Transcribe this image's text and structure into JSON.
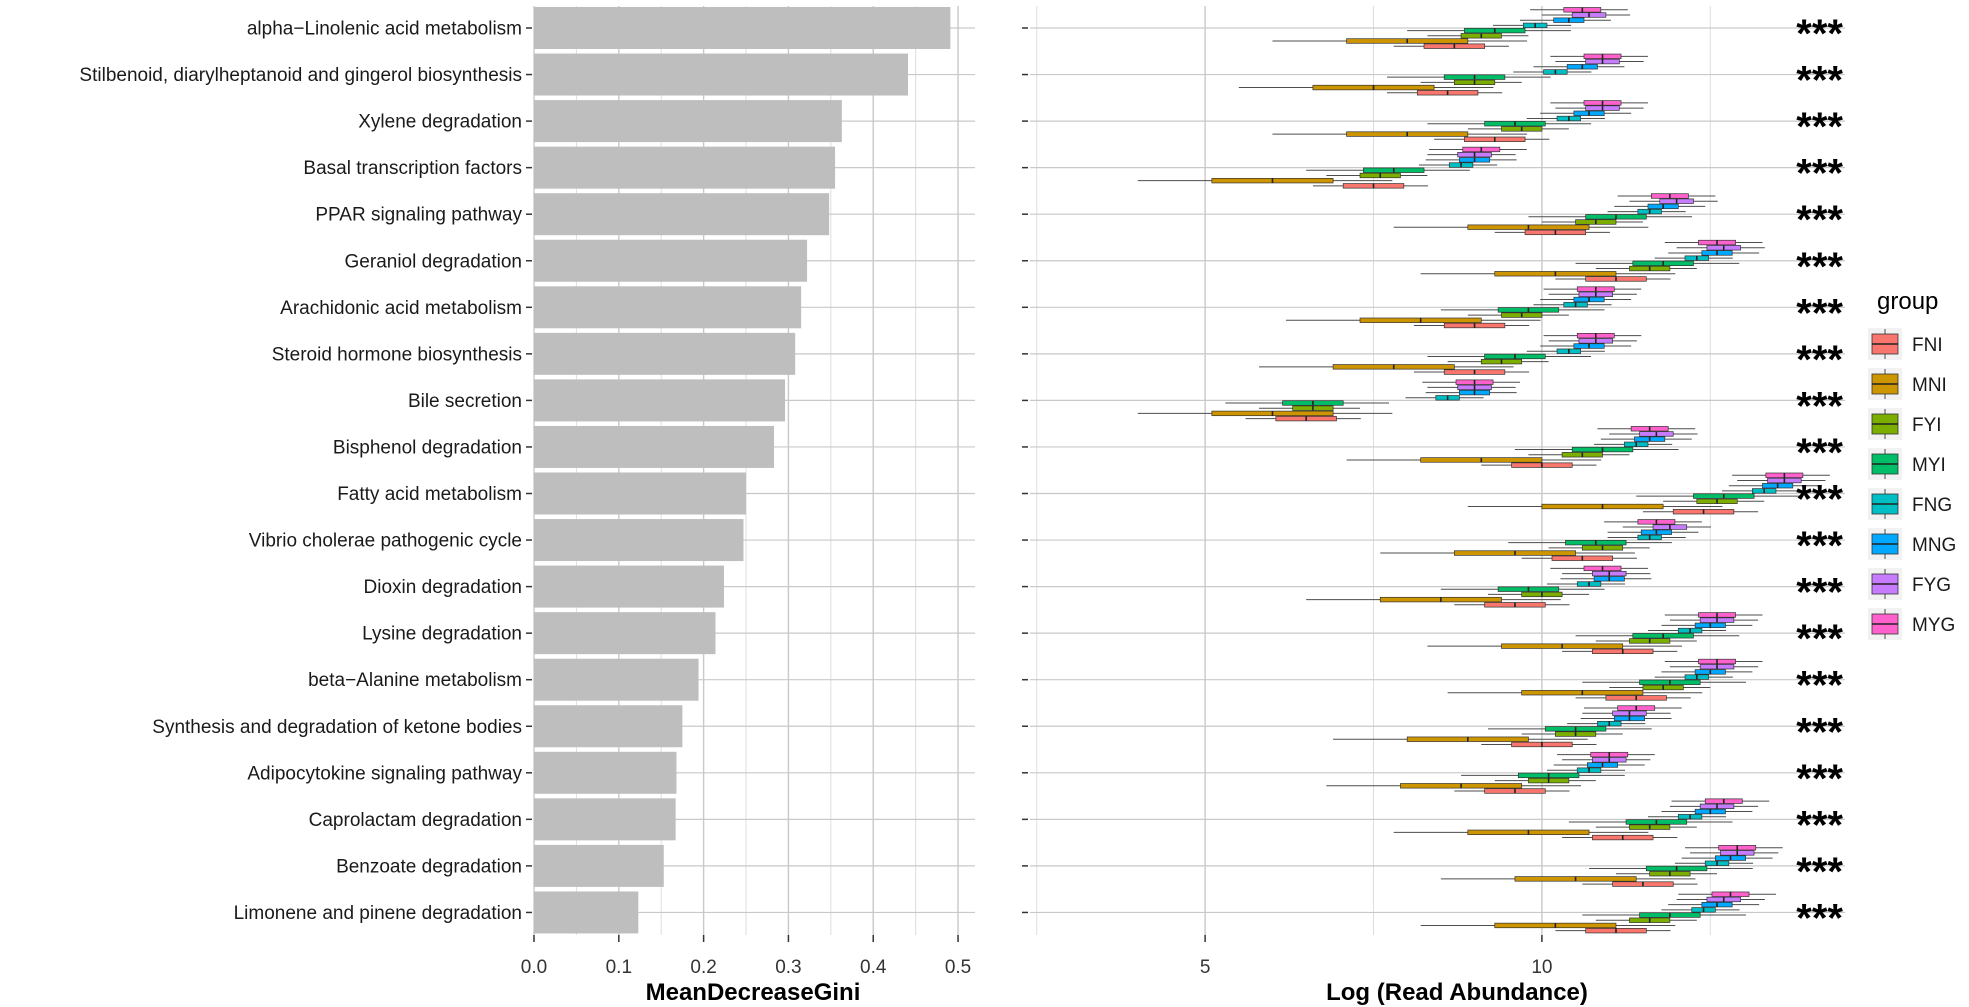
{
  "chart_data": [
    {
      "type": "bar",
      "orientation": "horizontal",
      "xlabel": "MeanDecreaseGini",
      "xlim": [
        0,
        0.52
      ],
      "xticks": [
        "0.0",
        "0.1",
        "0.2",
        "0.3",
        "0.4",
        "0.5"
      ],
      "grid": true,
      "bar_color": "#bebebe",
      "categories": [
        "alpha−Linolenic acid metabolism",
        "Stilbenoid, diarylheptanoid and gingerol biosynthesis",
        "Xylene degradation",
        "Basal transcription factors",
        "PPAR signaling pathway",
        "Geraniol degradation",
        "Arachidonic acid metabolism",
        "Steroid hormone biosynthesis",
        "Bile secretion",
        "Bisphenol degradation",
        "Fatty acid metabolism",
        "Vibrio cholerae pathogenic cycle",
        "Dioxin degradation",
        "Lysine degradation",
        "beta−Alanine metabolism",
        "Synthesis and degradation of ketone bodies",
        "Adipocytokine signaling pathway",
        "Caprolactam degradation",
        "Benzoate degradation",
        "Limonene and pinene degradation"
      ],
      "values": [
        0.491,
        0.441,
        0.363,
        0.355,
        0.348,
        0.322,
        0.315,
        0.308,
        0.296,
        0.283,
        0.25,
        0.247,
        0.224,
        0.214,
        0.194,
        0.175,
        0.168,
        0.167,
        0.153,
        0.123
      ]
    },
    {
      "type": "boxplot",
      "orientation": "horizontal",
      "xlabel": "Log (Read Abundance)",
      "xlim": [
        2.4,
        14.5
      ],
      "xticks": [
        5,
        10
      ],
      "grid": true,
      "legend": {
        "title": "group",
        "position": "right"
      },
      "groups": [
        "FNI",
        "MNI",
        "FYI",
        "MYI",
        "FNG",
        "MNG",
        "FYG",
        "MYG"
      ],
      "colors": [
        "#f8766d",
        "#cd9600",
        "#7cae00",
        "#00be67",
        "#00bfc4",
        "#00a9ff",
        "#c77cff",
        "#ff61cc"
      ],
      "significance": [
        "***",
        "***",
        "***",
        "***",
        "***",
        "***",
        "***",
        "***",
        "***",
        "***",
        "***",
        "***",
        "***",
        "***",
        "***",
        "***",
        "***",
        "***",
        "***",
        "***"
      ],
      "centers": [
        [
          8.7,
          8.0,
          9.1,
          9.3,
          9.9,
          10.4,
          10.7,
          10.6
        ],
        [
          8.6,
          7.5,
          9.0,
          9.0,
          10.2,
          10.6,
          10.9,
          10.9
        ],
        [
          9.3,
          8.0,
          9.7,
          9.6,
          10.4,
          10.7,
          10.9,
          10.9
        ],
        [
          7.5,
          6.0,
          7.6,
          7.8,
          8.8,
          9.0,
          9.0,
          9.1
        ],
        [
          10.2,
          9.8,
          10.8,
          11.1,
          11.6,
          11.8,
          12.0,
          11.9
        ],
        [
          11.1,
          10.2,
          11.6,
          11.8,
          12.3,
          12.6,
          12.7,
          12.6
        ],
        [
          9.0,
          8.2,
          9.7,
          9.8,
          10.5,
          10.7,
          10.8,
          10.8
        ],
        [
          9.0,
          7.8,
          9.4,
          9.6,
          10.4,
          10.7,
          10.8,
          10.8
        ],
        [
          6.5,
          6.0,
          6.6,
          6.6,
          8.6,
          9.0,
          9.0,
          9.0
        ],
        [
          10.0,
          9.1,
          10.6,
          10.9,
          11.4,
          11.6,
          11.7,
          11.6
        ],
        [
          12.4,
          10.9,
          12.6,
          12.7,
          13.3,
          13.5,
          13.6,
          13.6
        ],
        [
          10.6,
          9.6,
          10.9,
          10.8,
          11.6,
          11.7,
          11.9,
          11.7
        ],
        [
          9.6,
          8.5,
          10.0,
          9.8,
          10.7,
          11.0,
          11.0,
          10.9
        ],
        [
          11.2,
          10.3,
          11.6,
          11.8,
          12.2,
          12.5,
          12.6,
          12.6
        ],
        [
          11.4,
          10.6,
          11.8,
          11.9,
          12.3,
          12.5,
          12.6,
          12.6
        ],
        [
          10.0,
          8.9,
          10.5,
          10.5,
          11.0,
          11.3,
          11.3,
          11.4
        ],
        [
          9.6,
          8.8,
          10.1,
          10.1,
          10.7,
          10.9,
          11.0,
          11.0
        ],
        [
          11.2,
          9.8,
          11.6,
          11.7,
          12.2,
          12.5,
          12.6,
          12.7
        ],
        [
          11.5,
          10.5,
          11.9,
          12.0,
          12.6,
          12.8,
          12.9,
          12.9
        ],
        [
          11.1,
          10.2,
          11.6,
          11.9,
          12.4,
          12.6,
          12.7,
          12.8
        ]
      ]
    }
  ]
}
